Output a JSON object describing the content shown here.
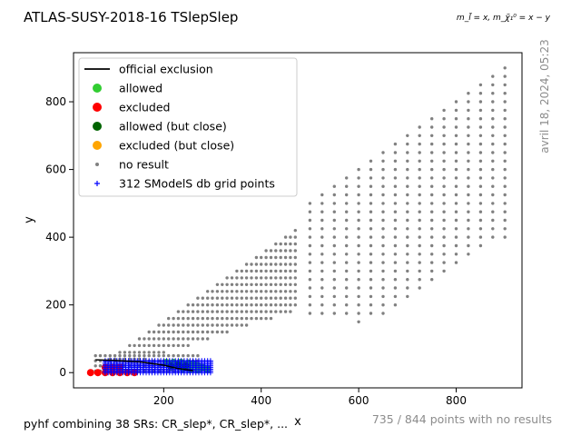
{
  "chart_data": {
    "type": "scatter",
    "title": "ATLAS-SUSY-2018-16 TSlepSlep",
    "mass_label": "m_l̃ = x, m_χ̃₁⁰ = x − y",
    "xlabel": "x",
    "ylabel": "y",
    "xlim": [
      15,
      935
    ],
    "ylim": [
      -45,
      945
    ],
    "xticks": [
      200,
      400,
      600,
      800
    ],
    "yticks": [
      0,
      200,
      400,
      600,
      800
    ],
    "grid": false,
    "legend_position": "top-left",
    "timestamp": "avril 18, 2024, 05:23",
    "footer_left": "pyhf combining 38 SRs: CR_slep*, CR_slep*, ...",
    "footer_right": "735 / 844 points with no results",
    "legend": [
      {
        "label": "official exclusion",
        "kind": "line",
        "color": "#000000"
      },
      {
        "label": "allowed",
        "kind": "dot",
        "color": "#32cd32"
      },
      {
        "label": "excluded",
        "kind": "dot",
        "color": "#ff0000"
      },
      {
        "label": "allowed (but close)",
        "kind": "dot",
        "color": "#006400"
      },
      {
        "label": "excluded (but close)",
        "kind": "dot",
        "color": "#ffa500"
      },
      {
        "label": "no result",
        "kind": "small",
        "color": "#808080"
      },
      {
        "label": "312 SModelS db grid points",
        "kind": "plus",
        "color": "#0000ff"
      }
    ],
    "official_exclusion": [
      [
        60,
        38
      ],
      [
        100,
        36
      ],
      [
        150,
        32
      ],
      [
        200,
        22
      ],
      [
        230,
        12
      ],
      [
        260,
        6
      ]
    ],
    "no_result_bands": [
      {
        "x_from": 60,
        "x_to": 470,
        "x_step": 10,
        "y_min_fn": "max(5,(x-80)*0.47)",
        "y_max_fn": "x-50",
        "y_step": 20
      },
      {
        "x_from": 500,
        "x_to": 900,
        "x_step": 25,
        "y_min_fn": "band",
        "y_max_fn": "x",
        "y_step": 25
      }
    ],
    "allowed_points": [
      [
        205,
        30
      ],
      [
        220,
        30
      ],
      [
        235,
        30
      ],
      [
        250,
        28
      ],
      [
        260,
        26
      ],
      [
        270,
        20
      ],
      [
        280,
        15
      ],
      [
        290,
        10
      ],
      [
        240,
        12
      ],
      [
        255,
        10
      ],
      [
        270,
        8
      ]
    ],
    "excluded_points": [
      [
        50,
        0
      ],
      [
        65,
        0
      ],
      [
        80,
        0
      ],
      [
        95,
        0
      ],
      [
        110,
        0
      ],
      [
        125,
        0
      ],
      [
        140,
        0
      ],
      [
        80,
        15
      ],
      [
        95,
        15
      ],
      [
        110,
        15
      ]
    ],
    "allowed_close_points": [
      [
        230,
        22
      ],
      [
        245,
        20
      ],
      [
        215,
        18
      ]
    ],
    "grid_points_x_range": [
      80,
      300
    ],
    "grid_points_y_values": [
      0,
      5,
      10,
      15,
      20,
      25,
      30,
      35
    ]
  }
}
